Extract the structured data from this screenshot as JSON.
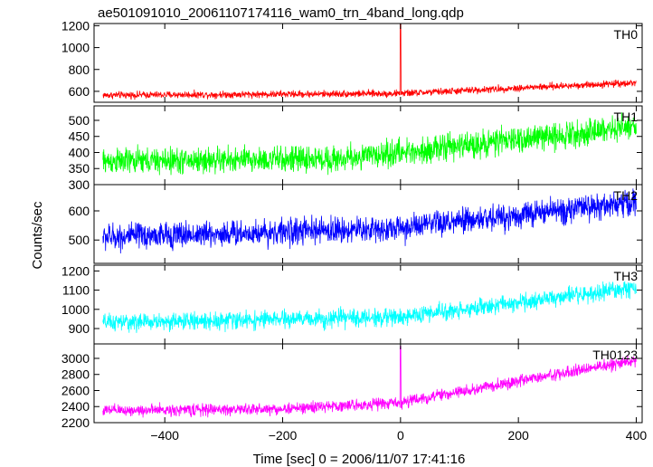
{
  "figure": {
    "title": "ae501091010_20061107174116_wam0_trn_4band_long.qdp",
    "ylabel": "Counts/sec",
    "xlabel": "Time [sec] 0 = 2006/11/07 17:41:16"
  },
  "chart_data": {
    "type": "line",
    "title": "ae501091010_20061107174116_wam0_trn_4band_long.qdp",
    "xlabel": "Time [sec] 0 = 2006/11/07 17:41:16",
    "ylabel": "Counts/sec",
    "xlim": [
      -520,
      410
    ],
    "x_ticks": [
      -400,
      -200,
      0,
      200,
      400
    ],
    "x_tick_labels": [
      "−400",
      "−200",
      "0",
      "200",
      "400"
    ],
    "grid": false,
    "panels": [
      {
        "name": "TH0",
        "color": "#ff0000",
        "ylim": [
          500,
          1220
        ],
        "y_ticks": [
          600,
          800,
          1000,
          1200
        ],
        "x_range": [
          -505,
          400
        ],
        "trend": [
          [
            -505,
            565
          ],
          [
            0,
            580
          ],
          [
            400,
            680
          ]
        ],
        "noise": 20,
        "spikes": [
          {
            "x": 0,
            "y": 1220
          }
        ]
      },
      {
        "name": "TH1",
        "color": "#00ff00",
        "ylim": [
          300,
          545
        ],
        "y_ticks": [
          300,
          350,
          400,
          450,
          500
        ],
        "x_range": [
          -505,
          400
        ],
        "trend": [
          [
            -505,
            372
          ],
          [
            -100,
            380
          ],
          [
            400,
            480
          ]
        ],
        "noise": 25,
        "spikes": []
      },
      {
        "name": "TH2",
        "color": "#0000ff",
        "ylim": [
          420,
          690
        ],
        "y_ticks": [
          500,
          600
        ],
        "x_range": [
          -505,
          400
        ],
        "trend": [
          [
            -505,
            510
          ],
          [
            0,
            540
          ],
          [
            400,
            630
          ]
        ],
        "noise": 28,
        "spikes": []
      },
      {
        "name": "TH3",
        "color": "#00ffff",
        "ylim": [
          820,
          1230
        ],
        "y_ticks": [
          900,
          1000,
          1100,
          1200
        ],
        "x_range": [
          -505,
          400
        ],
        "trend": [
          [
            -505,
            930
          ],
          [
            0,
            960
          ],
          [
            400,
            1110
          ]
        ],
        "noise": 28,
        "spikes": []
      },
      {
        "name": "TH0123",
        "color": "#ff00ff",
        "ylim": [
          2200,
          3180
        ],
        "y_ticks": [
          2200,
          2400,
          2600,
          2800,
          3000
        ],
        "x_range": [
          -505,
          400
        ],
        "trend": [
          [
            -505,
            2350
          ],
          [
            -200,
            2370
          ],
          [
            0,
            2450
          ],
          [
            400,
            2980
          ]
        ],
        "noise": 45,
        "spikes": [
          {
            "x": 0,
            "y": 3150
          }
        ]
      }
    ]
  }
}
